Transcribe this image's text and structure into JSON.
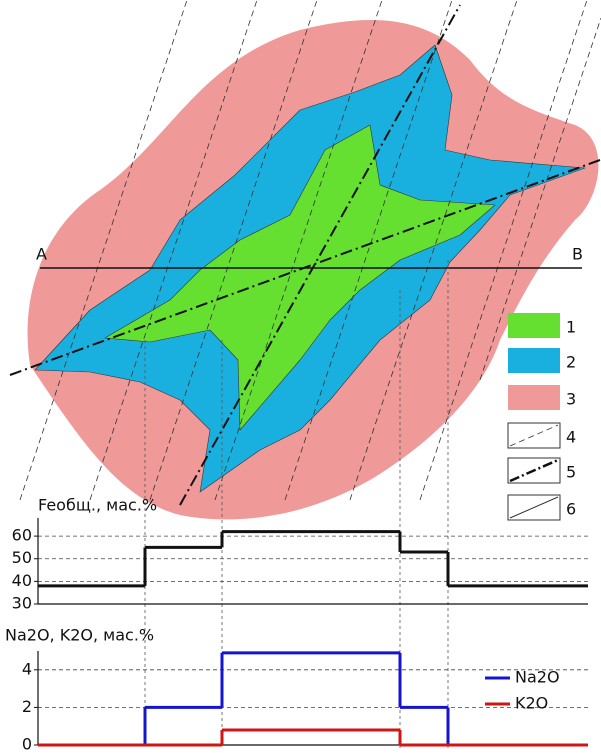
{
  "diagram": {
    "label_a": "A",
    "label_b": "B",
    "legend": [
      "1",
      "2",
      "3",
      "4",
      "5",
      "6"
    ]
  },
  "chart_data": [
    {
      "type": "line",
      "title": "Feобщ., мас.%",
      "categories": [
        null,
        null,
        null,
        null,
        null
      ],
      "series": [
        {
          "color": "#111111",
          "values": [
            38,
            55,
            62,
            53,
            38
          ]
        }
      ],
      "ylim": [
        30,
        68
      ],
      "yticks": [
        30,
        40,
        50,
        60
      ],
      "grid": true
    },
    {
      "type": "line",
      "title": "Na2O, K2O, мас.%",
      "categories": [
        null,
        null,
        null,
        null,
        null
      ],
      "series": [
        {
          "name": "Na2O",
          "color": "#1515d0",
          "values": [
            0,
            2,
            4.9,
            2,
            0
          ]
        },
        {
          "name": "K2O",
          "color": "#d01515",
          "values": [
            0,
            0,
            0.8,
            0,
            0
          ]
        }
      ],
      "ylim": [
        0,
        5
      ],
      "yticks": [
        0,
        2,
        4
      ],
      "grid": true
    }
  ]
}
